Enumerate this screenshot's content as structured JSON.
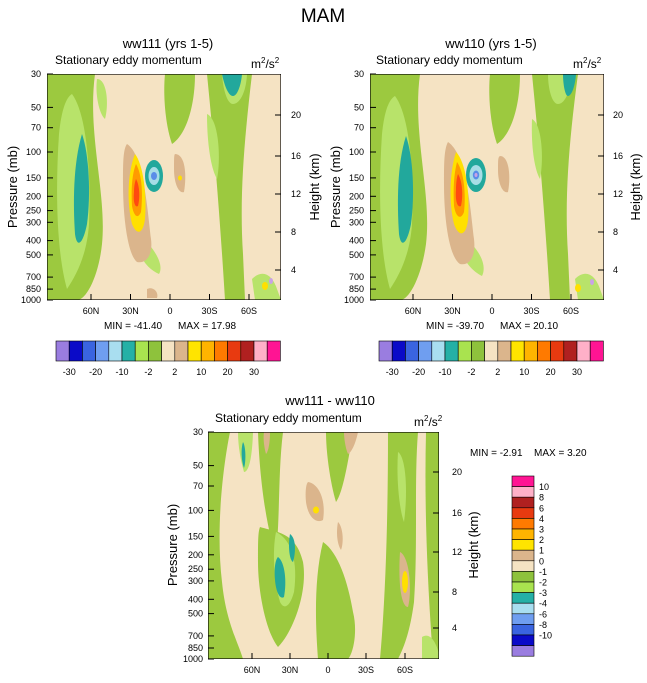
{
  "figure": {
    "title": "MAM"
  },
  "colors": {
    "cream": "#f5e3c3",
    "tan": "#dbb58c",
    "lightgreen": "#b8e36a",
    "green": "#9cc93f",
    "teal": "#22a89c",
    "paleblue": "#a6dde6",
    "blue": "#5a8de8",
    "yellow": "#ffe000",
    "orange": "#ff9a00",
    "redorange": "#ff4a10",
    "lavender": "#c9a2e6"
  },
  "chart_data": [
    {
      "type": "contour",
      "title": "ww111 (yrs 1-5)",
      "subtitle": "Stationary eddy momentum",
      "units": "m²/s²",
      "units_base": "m",
      "units_sup1": "2",
      "units_mid": "/s",
      "units_sup2": "2",
      "ylabel": "Pressure (mb)",
      "y2label": "Height (km)",
      "x_ticks": [
        "60N",
        "30N",
        "0",
        "30S",
        "60S"
      ],
      "y_ticks": [
        30,
        50,
        70,
        100,
        150,
        200,
        250,
        300,
        400,
        500,
        700,
        850,
        1000
      ],
      "y2_ticks": [
        4,
        8,
        12,
        16,
        20
      ],
      "min_label": "MIN = -41.40",
      "max_label": "MAX =  17.98",
      "min": -41.4,
      "max": 17.98
    },
    {
      "type": "contour",
      "title": "ww110 (yrs 1-5)",
      "subtitle": "Stationary eddy momentum",
      "units": "m²/s²",
      "units_base": "m",
      "units_sup1": "2",
      "units_mid": "/s",
      "units_sup2": "2",
      "ylabel": "Pressure (mb)",
      "y2label": "Height (km)",
      "x_ticks": [
        "60N",
        "30N",
        "0",
        "30S",
        "60S"
      ],
      "y_ticks": [
        30,
        50,
        70,
        100,
        150,
        200,
        250,
        300,
        400,
        500,
        700,
        850,
        1000
      ],
      "y2_ticks": [
        4,
        8,
        12,
        16,
        20
      ],
      "min_label": "MIN = -39.70",
      "max_label": "MAX =  20.10",
      "min": -39.7,
      "max": 20.1
    },
    {
      "type": "contour",
      "title": "ww111 - ww110",
      "subtitle": "Stationary eddy momentum",
      "units": "m²/s²",
      "units_base": "m",
      "units_sup1": "2",
      "units_mid": "/s",
      "units_sup2": "2",
      "ylabel": "Pressure (mb)",
      "y2label": "Height (km)",
      "x_ticks": [
        "60N",
        "30N",
        "0",
        "30S",
        "60S"
      ],
      "y_ticks": [
        30,
        50,
        70,
        100,
        150,
        200,
        250,
        300,
        400,
        500,
        700,
        850,
        1000
      ],
      "y2_ticks": [
        4,
        8,
        12,
        16,
        20
      ],
      "min_label": "MIN =  -2.91",
      "max_label": "MAX =   3.20",
      "min": -2.91,
      "max": 3.2
    }
  ],
  "colorbar_top": {
    "colors": [
      "#9a7de0",
      "#0a0ac8",
      "#3a64e0",
      "#6f9ef0",
      "#a9def0",
      "#25b0a6",
      "#a9e34f",
      "#8ec23c",
      "#f5e3c3",
      "#dbb58c",
      "#ffe400",
      "#ffb400",
      "#ff7a00",
      "#e83a10",
      "#b02020",
      "#ffb0c8",
      "#ff1493"
    ],
    "labels": [
      "-30",
      "-20",
      "-10",
      "-2",
      "2",
      "10",
      "20",
      "30"
    ]
  },
  "colorbar_diff": {
    "colors": [
      "#ff1493",
      "#ffb0c8",
      "#b02020",
      "#e83a10",
      "#ff7a00",
      "#ffb400",
      "#ffe400",
      "#dbb58c",
      "#f5e3c3",
      "#8ec23c",
      "#a9e34f",
      "#25b0a6",
      "#a9def0",
      "#6f9ef0",
      "#3a64e0",
      "#0a0ac8",
      "#9a7de0"
    ],
    "labels": [
      "10",
      "8",
      "6",
      "4",
      "3",
      "2",
      "1",
      "0",
      "-1",
      "-2",
      "-3",
      "-4",
      "-6",
      "-8",
      "-10"
    ]
  }
}
